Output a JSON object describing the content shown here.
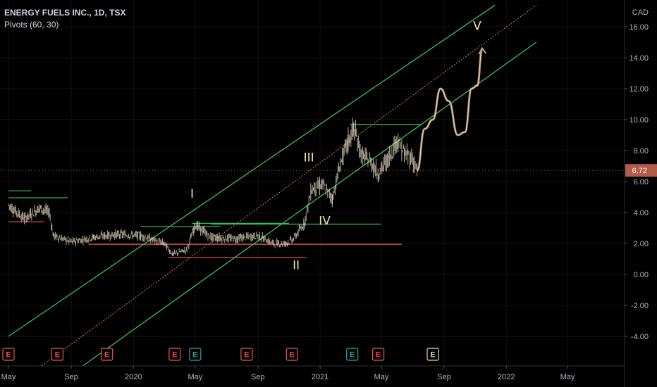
{
  "header": {
    "title": "ENERGY FUELS INC., 1D, TSX",
    "indicator": "Pivots (60, 30)"
  },
  "price_axis": {
    "currency": "CAD"
  },
  "chart_data": {
    "type": "line",
    "symbol": "ENERGY FUELS INC.",
    "interval": "1D",
    "exchange": "TSX",
    "currency": "CAD",
    "last_price": 6.72,
    "ylim": [
      -5.4,
      17.4
    ],
    "y_ticks": [
      "16.00",
      "14.00",
      "12.00",
      "10.00",
      "8.00",
      "6.00",
      "4.00",
      "2.00",
      "0.00",
      "-2.00",
      "-4.00"
    ],
    "y_tick_values": [
      16,
      14,
      12,
      10,
      8,
      6,
      4,
      2,
      0,
      -2,
      -4
    ],
    "x_ticks": [
      "May",
      "Sep",
      "2020",
      "May",
      "Sep",
      "2021",
      "May",
      "Sep",
      "2022",
      "May"
    ],
    "x_tick_dates": [
      "2019-05-01",
      "2019-09-01",
      "2020-01-01",
      "2020-05-01",
      "2020-09-01",
      "2021-01-01",
      "2021-05-01",
      "2021-09-01",
      "2022-01-01",
      "2022-05-01"
    ],
    "series": [
      {
        "type": "price",
        "x": [
          "2019-05-01",
          "2019-06-01",
          "2019-07-01",
          "2019-07-20",
          "2019-07-28",
          "2019-09-01",
          "2019-10-15",
          "2019-12-01",
          "2020-01-15",
          "2020-03-01",
          "2020-03-18",
          "2020-04-15",
          "2020-05-01",
          "2020-06-01",
          "2020-07-15",
          "2020-09-01",
          "2020-10-01",
          "2020-10-25",
          "2020-11-10",
          "2020-12-01",
          "2020-12-15",
          "2021-01-05",
          "2021-01-25",
          "2021-02-10",
          "2021-02-25",
          "2021-03-08",
          "2021-03-25",
          "2021-04-10",
          "2021-04-25",
          "2021-05-15",
          "2021-06-01",
          "2021-06-15",
          "2021-07-01",
          "2021-07-10"
        ],
        "y": [
          4.5,
          3.6,
          4.3,
          4.0,
          2.5,
          2.1,
          2.4,
          2.6,
          2.5,
          2.0,
          1.3,
          1.6,
          3.2,
          2.4,
          2.3,
          2.5,
          2.0,
          2.0,
          2.3,
          3.3,
          5.5,
          5.8,
          4.9,
          7.2,
          8.6,
          9.4,
          7.6,
          7.3,
          6.5,
          7.5,
          8.7,
          7.8,
          7.5,
          6.7
        ]
      },
      {
        "type": "projection",
        "x": [
          "2021-07-10",
          "2021-07-25",
          "2021-08-10",
          "2021-08-25",
          "2021-09-10",
          "2021-09-28",
          "2021-10-12",
          "2021-10-25",
          "2021-11-05",
          "2021-11-15"
        ],
        "y": [
          6.7,
          9.4,
          10.0,
          12.0,
          11.2,
          9.0,
          9.2,
          12.0,
          12.2,
          14.6
        ]
      }
    ],
    "channel": {
      "median": {
        "x": [
          "2019-07-01",
          "2022-03-01"
        ],
        "y": [
          -6.0,
          17.4
        ]
      },
      "upper": {
        "x": [
          "2019-05-01",
          "2021-12-10"
        ],
        "y": [
          -4.0,
          17.4
        ]
      },
      "lower": {
        "x": [
          "2019-09-20",
          "2022-03-01"
        ],
        "y": [
          -6.0,
          15.0
        ]
      }
    },
    "pivots": {
      "highs": [
        {
          "from": "2019-05-01",
          "to": "2019-06-15",
          "y": 5.4
        },
        {
          "from": "2019-05-01",
          "to": "2019-08-25",
          "y": 4.95
        },
        {
          "from": "2020-01-15",
          "to": "2020-06-20",
          "y": 3.1
        },
        {
          "from": "2020-04-25",
          "to": "2020-11-01",
          "y": 3.3
        },
        {
          "from": "2020-06-01",
          "to": "2021-05-01",
          "y": 3.25
        },
        {
          "from": "2021-02-28",
          "to": "2021-07-20",
          "y": 9.7
        }
      ],
      "lows": [
        {
          "from": "2019-05-01",
          "to": "2019-07-10",
          "y": 3.4
        },
        {
          "from": "2019-10-05",
          "to": "2021-06-10",
          "y": 1.95
        },
        {
          "from": "2020-03-10",
          "to": "2020-12-05",
          "y": 1.1
        }
      ]
    },
    "wave_labels": [
      {
        "label": "I",
        "x": "2020-04-25",
        "y": 4.95
      },
      {
        "label": "II",
        "x": "2020-11-15",
        "y": 0.35
      },
      {
        "label": "III",
        "x": "2020-12-10",
        "y": 7.3
      },
      {
        "label": "IV",
        "x": "2021-01-10",
        "y": 3.2
      },
      {
        "label": "V",
        "x": "2021-11-05",
        "y": 15.8
      }
    ],
    "earnings": [
      {
        "x": "2019-05-01",
        "color": "#ef5350"
      },
      {
        "x": "2019-08-05",
        "color": "#ef5350"
      },
      {
        "x": "2019-11-10",
        "color": "#ef5350"
      },
      {
        "x": "2020-03-22",
        "color": "#ef5350"
      },
      {
        "x": "2020-05-01",
        "color": "#26a69a"
      },
      {
        "x": "2020-08-10",
        "color": "#ef5350"
      },
      {
        "x": "2020-11-07",
        "color": "#ef5350"
      },
      {
        "x": "2021-03-05",
        "color": "#26a69a"
      },
      {
        "x": "2021-04-25",
        "color": "#ef5350"
      },
      {
        "x": "2021-08-10",
        "color": "#e6d3a8"
      }
    ],
    "grid": true,
    "legend_position": "top-left"
  },
  "colors": {
    "background": "#000000",
    "channel": "#3bbf57",
    "median": "#e07a54",
    "pivot_high": "#3bbf57",
    "pivot_low": "#ef5350",
    "price": "#f0e6cc",
    "projection": "#c9a27c",
    "last_price_badge": "#b35a49",
    "earnings_red": "#ef5350",
    "earnings_green": "#26a69a"
  }
}
